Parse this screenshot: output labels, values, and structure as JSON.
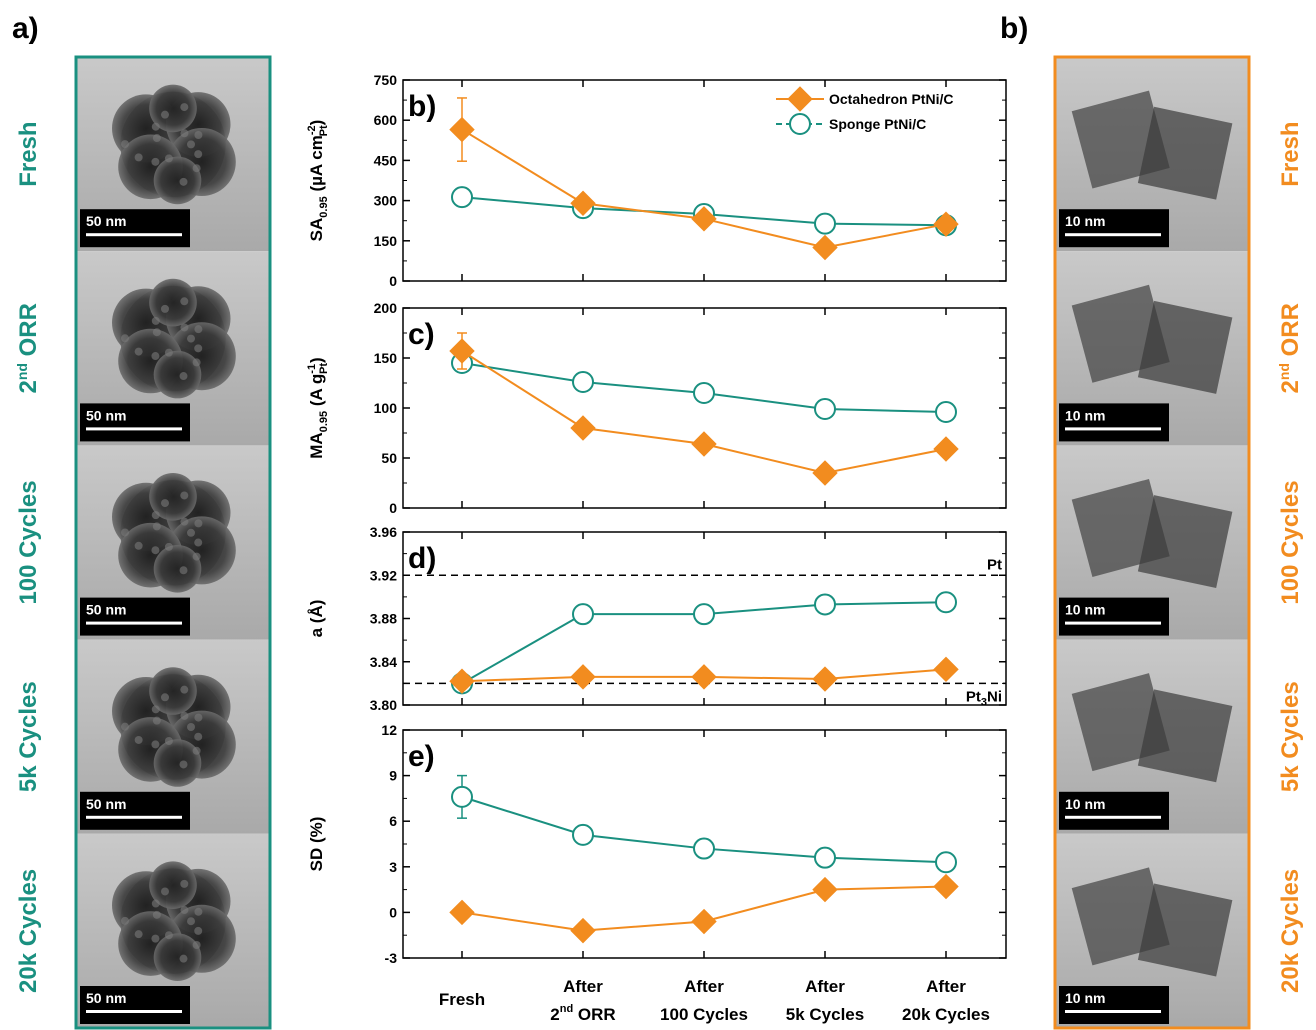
{
  "colors": {
    "octahedron": "#f28c1f",
    "sponge": "#1a9080",
    "left_frame": "#1a9080",
    "right_frame": "#f28c1f"
  },
  "panel_a": {
    "letter": "a)",
    "rows": [
      {
        "label": "Fresh",
        "scale": "50 nm"
      },
      {
        "label": "2nd ORR",
        "label_base": "2",
        "label_sup": "nd",
        "label_rest": " ORR",
        "scale": "50 nm"
      },
      {
        "label": "100 Cycles",
        "scale": "50 nm"
      },
      {
        "label": "5k Cycles",
        "scale": "50 nm"
      },
      {
        "label": "20k Cycles",
        "scale": "50 nm"
      }
    ]
  },
  "panel_b": {
    "letter": "b)",
    "rows": [
      {
        "label": "Fresh",
        "scale": "10 nm"
      },
      {
        "label": "2nd ORR",
        "label_base": "2",
        "label_sup": "nd",
        "label_rest": " ORR",
        "scale": "10 nm"
      },
      {
        "label": "100 Cycles",
        "scale": "10 nm"
      },
      {
        "label": "5k Cycles",
        "scale": "10 nm"
      },
      {
        "label": "20k Cycles",
        "scale": "10 nm"
      }
    ]
  },
  "legend": {
    "octahedron": "Octahedron PtNi/C",
    "sponge": "Sponge PtNi/C"
  },
  "x_categories": [
    {
      "line1": "",
      "line2": "Fresh"
    },
    {
      "line1": "After",
      "line2_base": "2",
      "line2_sup": "nd",
      "line2_rest": " ORR"
    },
    {
      "line1": "After",
      "line2": "100 Cycles"
    },
    {
      "line1": "After",
      "line2": "5k Cycles"
    },
    {
      "line1": "After",
      "line2": "20k Cycles"
    }
  ],
  "chart_data": [
    {
      "type": "line",
      "panel": "b)",
      "ylabel": "SA0.95 (µA cm-2 Pt)",
      "ylim": [
        0,
        750
      ],
      "yticks": [
        0,
        150,
        300,
        450,
        600,
        750
      ],
      "categories": [
        "Fresh",
        "After 2nd ORR",
        "After 100 Cycles",
        "After 5k Cycles",
        "After 20k Cycles"
      ],
      "series": [
        {
          "name": "Octahedron PtNi/C",
          "values": [
            565,
            290,
            232,
            125,
            212
          ],
          "error": [
            118,
            0,
            0,
            0,
            0
          ]
        },
        {
          "name": "Sponge PtNi/C",
          "values": [
            313,
            272,
            250,
            214,
            208
          ],
          "error": [
            22,
            0,
            0,
            0,
            0
          ]
        }
      ]
    },
    {
      "type": "line",
      "panel": "c)",
      "ylabel": "MA0.95 (A g-1 Pt)",
      "ylim": [
        0,
        200
      ],
      "yticks": [
        0,
        50,
        100,
        150,
        200
      ],
      "categories": [
        "Fresh",
        "After 2nd ORR",
        "After 100 Cycles",
        "After 5k Cycles",
        "After 20k Cycles"
      ],
      "series": [
        {
          "name": "Octahedron PtNi/C",
          "values": [
            157,
            80,
            64,
            35,
            59
          ],
          "error": [
            18,
            0,
            0,
            0,
            0
          ]
        },
        {
          "name": "Sponge PtNi/C",
          "values": [
            145,
            126,
            115,
            99,
            96
          ],
          "error": [
            8,
            0,
            0,
            0,
            0
          ]
        }
      ]
    },
    {
      "type": "line",
      "panel": "d)",
      "ylabel": "a (Å)",
      "ylim": [
        3.8,
        3.96
      ],
      "yticks": [
        3.8,
        3.84,
        3.88,
        3.92,
        3.96
      ],
      "categories": [
        "Fresh",
        "After 2nd ORR",
        "After 100 Cycles",
        "After 5k Cycles",
        "After 20k Cycles"
      ],
      "reference_lines": [
        {
          "label": "Pt",
          "value": 3.92
        },
        {
          "label": "Pt3Ni",
          "value": 3.82
        }
      ],
      "series": [
        {
          "name": "Octahedron PtNi/C",
          "values": [
            3.822,
            3.826,
            3.826,
            3.824,
            3.833
          ]
        },
        {
          "name": "Sponge PtNi/C",
          "values": [
            3.82,
            3.884,
            3.884,
            3.893,
            3.895
          ]
        }
      ]
    },
    {
      "type": "line",
      "panel": "e)",
      "ylabel": "SD (%)",
      "ylim": [
        -3,
        12
      ],
      "yticks": [
        -3,
        0,
        3,
        6,
        9,
        12
      ],
      "categories": [
        "Fresh",
        "After 2nd ORR",
        "After 100 Cycles",
        "After 5k Cycles",
        "After 20k Cycles"
      ],
      "series": [
        {
          "name": "Octahedron PtNi/C",
          "values": [
            0.0,
            -1.2,
            -0.6,
            1.5,
            1.7
          ]
        },
        {
          "name": "Sponge PtNi/C",
          "values": [
            7.6,
            5.1,
            4.2,
            3.6,
            3.3
          ],
          "error": [
            1.4,
            0,
            0,
            0,
            0
          ]
        }
      ]
    }
  ]
}
